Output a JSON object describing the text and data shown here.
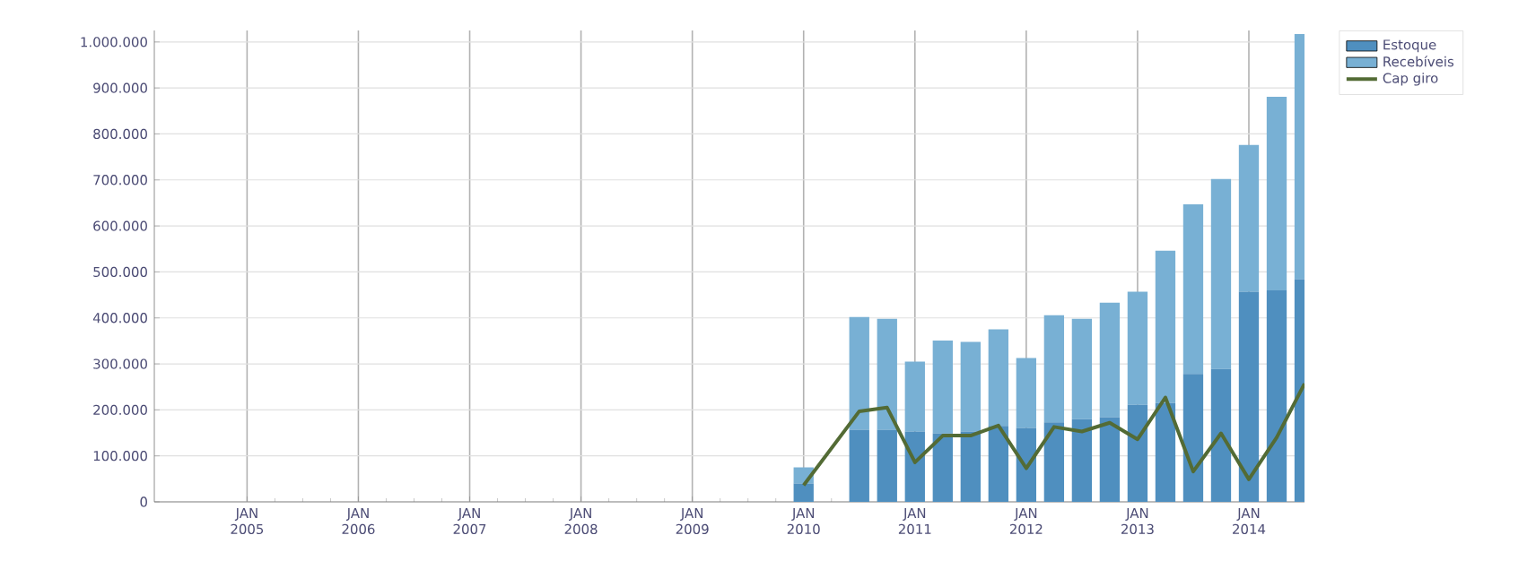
{
  "chart_data": {
    "type": "bar",
    "stacked": true,
    "x": [
      "2010-01",
      "2010-07",
      "2010-10",
      "2011-01",
      "2011-04",
      "2011-07",
      "2011-10",
      "2012-01",
      "2012-04",
      "2012-07",
      "2012-10",
      "2013-01",
      "2013-04",
      "2013-07",
      "2013-10",
      "2014-01",
      "2014-04",
      "2014-07"
    ],
    "series": [
      {
        "name": "Estoque",
        "color": "#4f8fbf",
        "values": [
          40000,
          157000,
          157000,
          153000,
          149000,
          153000,
          165000,
          161000,
          173000,
          180000,
          184000,
          211000,
          215000,
          278000,
          289000,
          457000,
          460000,
          484000
        ]
      },
      {
        "name": "Recebíveis",
        "color": "#78b0d4",
        "values": [
          35000,
          245000,
          241000,
          152000,
          202000,
          195000,
          210000,
          152000,
          233000,
          218000,
          249000,
          246000,
          331000,
          369000,
          413000,
          319000,
          421000,
          533000
        ]
      },
      {
        "name": "Cap giro",
        "type": "line",
        "color": "#536b35",
        "values": [
          36000,
          197000,
          205000,
          86000,
          144000,
          144000,
          166000,
          73000,
          163000,
          153000,
          172000,
          136000,
          227000,
          66000,
          149000,
          49000,
          140000,
          257000
        ]
      }
    ],
    "xlim": [
      "2004-03",
      "2014-07"
    ],
    "xticks": [
      {
        "value": "2005-01",
        "label": "JAN 2005"
      },
      {
        "value": "2006-01",
        "label": "JAN 2006"
      },
      {
        "value": "2007-01",
        "label": "JAN 2007"
      },
      {
        "value": "2008-01",
        "label": "JAN 2008"
      },
      {
        "value": "2009-01",
        "label": "JAN 2009"
      },
      {
        "value": "2010-01",
        "label": "JAN 2010"
      },
      {
        "value": "2011-01",
        "label": "JAN 2011"
      },
      {
        "value": "2012-01",
        "label": "JAN 2012"
      },
      {
        "value": "2013-01",
        "label": "JAN 2013"
      },
      {
        "value": "2014-01",
        "label": "JAN 2014"
      }
    ],
    "ylim": [
      0,
      1025000
    ],
    "yticks": [
      0,
      {
        "value": 100000,
        "label": "100.000"
      },
      {
        "value": 200000,
        "label": "200.000"
      },
      {
        "value": 300000,
        "label": "300.000"
      },
      {
        "value": 400000,
        "label": "400.000"
      },
      {
        "value": 500000,
        "label": "500.000"
      },
      {
        "value": 600000,
        "label": "600.000"
      },
      {
        "value": 700000,
        "label": "700.000"
      },
      {
        "value": 800000,
        "label": "800.000"
      },
      {
        "value": 900000,
        "label": "900.000"
      },
      {
        "value": 1000000,
        "label": "1.000.000"
      }
    ],
    "grid": true,
    "legend": "top right",
    "line_style": "solid",
    "marker": "none"
  }
}
